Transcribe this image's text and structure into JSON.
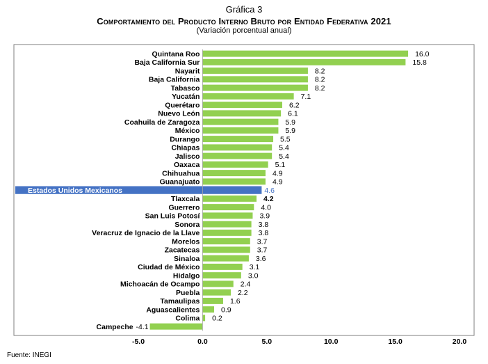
{
  "header": {
    "pretitle": "Gráfica 3",
    "title": "Comportamiento del Producto Interno Bruto por Entidad Federativa 2021",
    "subtitle": "(Variación porcentual anual)"
  },
  "source": "Fuente: INEGI",
  "colors": {
    "bar": "#92d050",
    "highlight_bar": "#4472c4",
    "highlight_text": "#4472c4",
    "frame": "#7f7f7f"
  },
  "chart_data": {
    "type": "bar",
    "orientation": "horizontal",
    "title": "Comportamiento del Producto Interno Bruto por Entidad Federativa 2021",
    "subtitle": "(Variación porcentual anual)",
    "xlim": [
      -5.0,
      20.0
    ],
    "xticks": [
      "-5.0",
      "0.0",
      "5.0",
      "10.0",
      "15.0",
      "20.0"
    ],
    "grid": false,
    "highlight": "Estados Unidos Mexicanos",
    "categories": [
      "Quintana Roo",
      "Baja California Sur",
      "Nayarit",
      "Baja California",
      "Tabasco",
      "Yucatán",
      "Querétaro",
      "Nuevo León",
      "Coahuila de Zaragoza",
      "México",
      "Durango",
      "Chiapas",
      "Jalisco",
      "Oaxaca",
      "Chihuahua",
      "Guanajuato",
      "Estados Unidos Mexicanos",
      "Tlaxcala",
      "Guerrero",
      "San Luis Potosí",
      "Sonora",
      "Veracruz de Ignacio de la Llave",
      "Morelos",
      "Zacatecas",
      "Sinaloa",
      "Ciudad de México",
      "Hidalgo",
      "Michoacán de Ocampo",
      "Puebla",
      "Tamaulipas",
      "Aguascalientes",
      "Colima",
      "Campeche"
    ],
    "values": [
      16.0,
      15.8,
      8.2,
      8.2,
      8.2,
      7.1,
      6.2,
      6.1,
      5.9,
      5.9,
      5.5,
      5.4,
      5.4,
      5.1,
      4.9,
      4.9,
      4.6,
      4.2,
      4.0,
      3.9,
      3.8,
      3.8,
      3.7,
      3.7,
      3.6,
      3.1,
      3.0,
      2.4,
      2.2,
      1.6,
      0.9,
      0.2,
      -4.1
    ],
    "labels": [
      "16.0",
      "15.8",
      "8.2",
      "8.2",
      "8.2",
      "7.1",
      "6.2",
      "6.1",
      "5.9",
      "5.9",
      "5.5",
      "5.4",
      "5.4",
      "5.1",
      "4.9",
      "4.9",
      "4.6",
      "4.2",
      "4.0",
      "3.9",
      "3.8",
      "3.8",
      "3.7",
      "3.7",
      "3.6",
      "3.1",
      "3.0",
      "2.4",
      "2.2",
      "1.6",
      "0.9",
      "0.2",
      "-4.1"
    ]
  }
}
